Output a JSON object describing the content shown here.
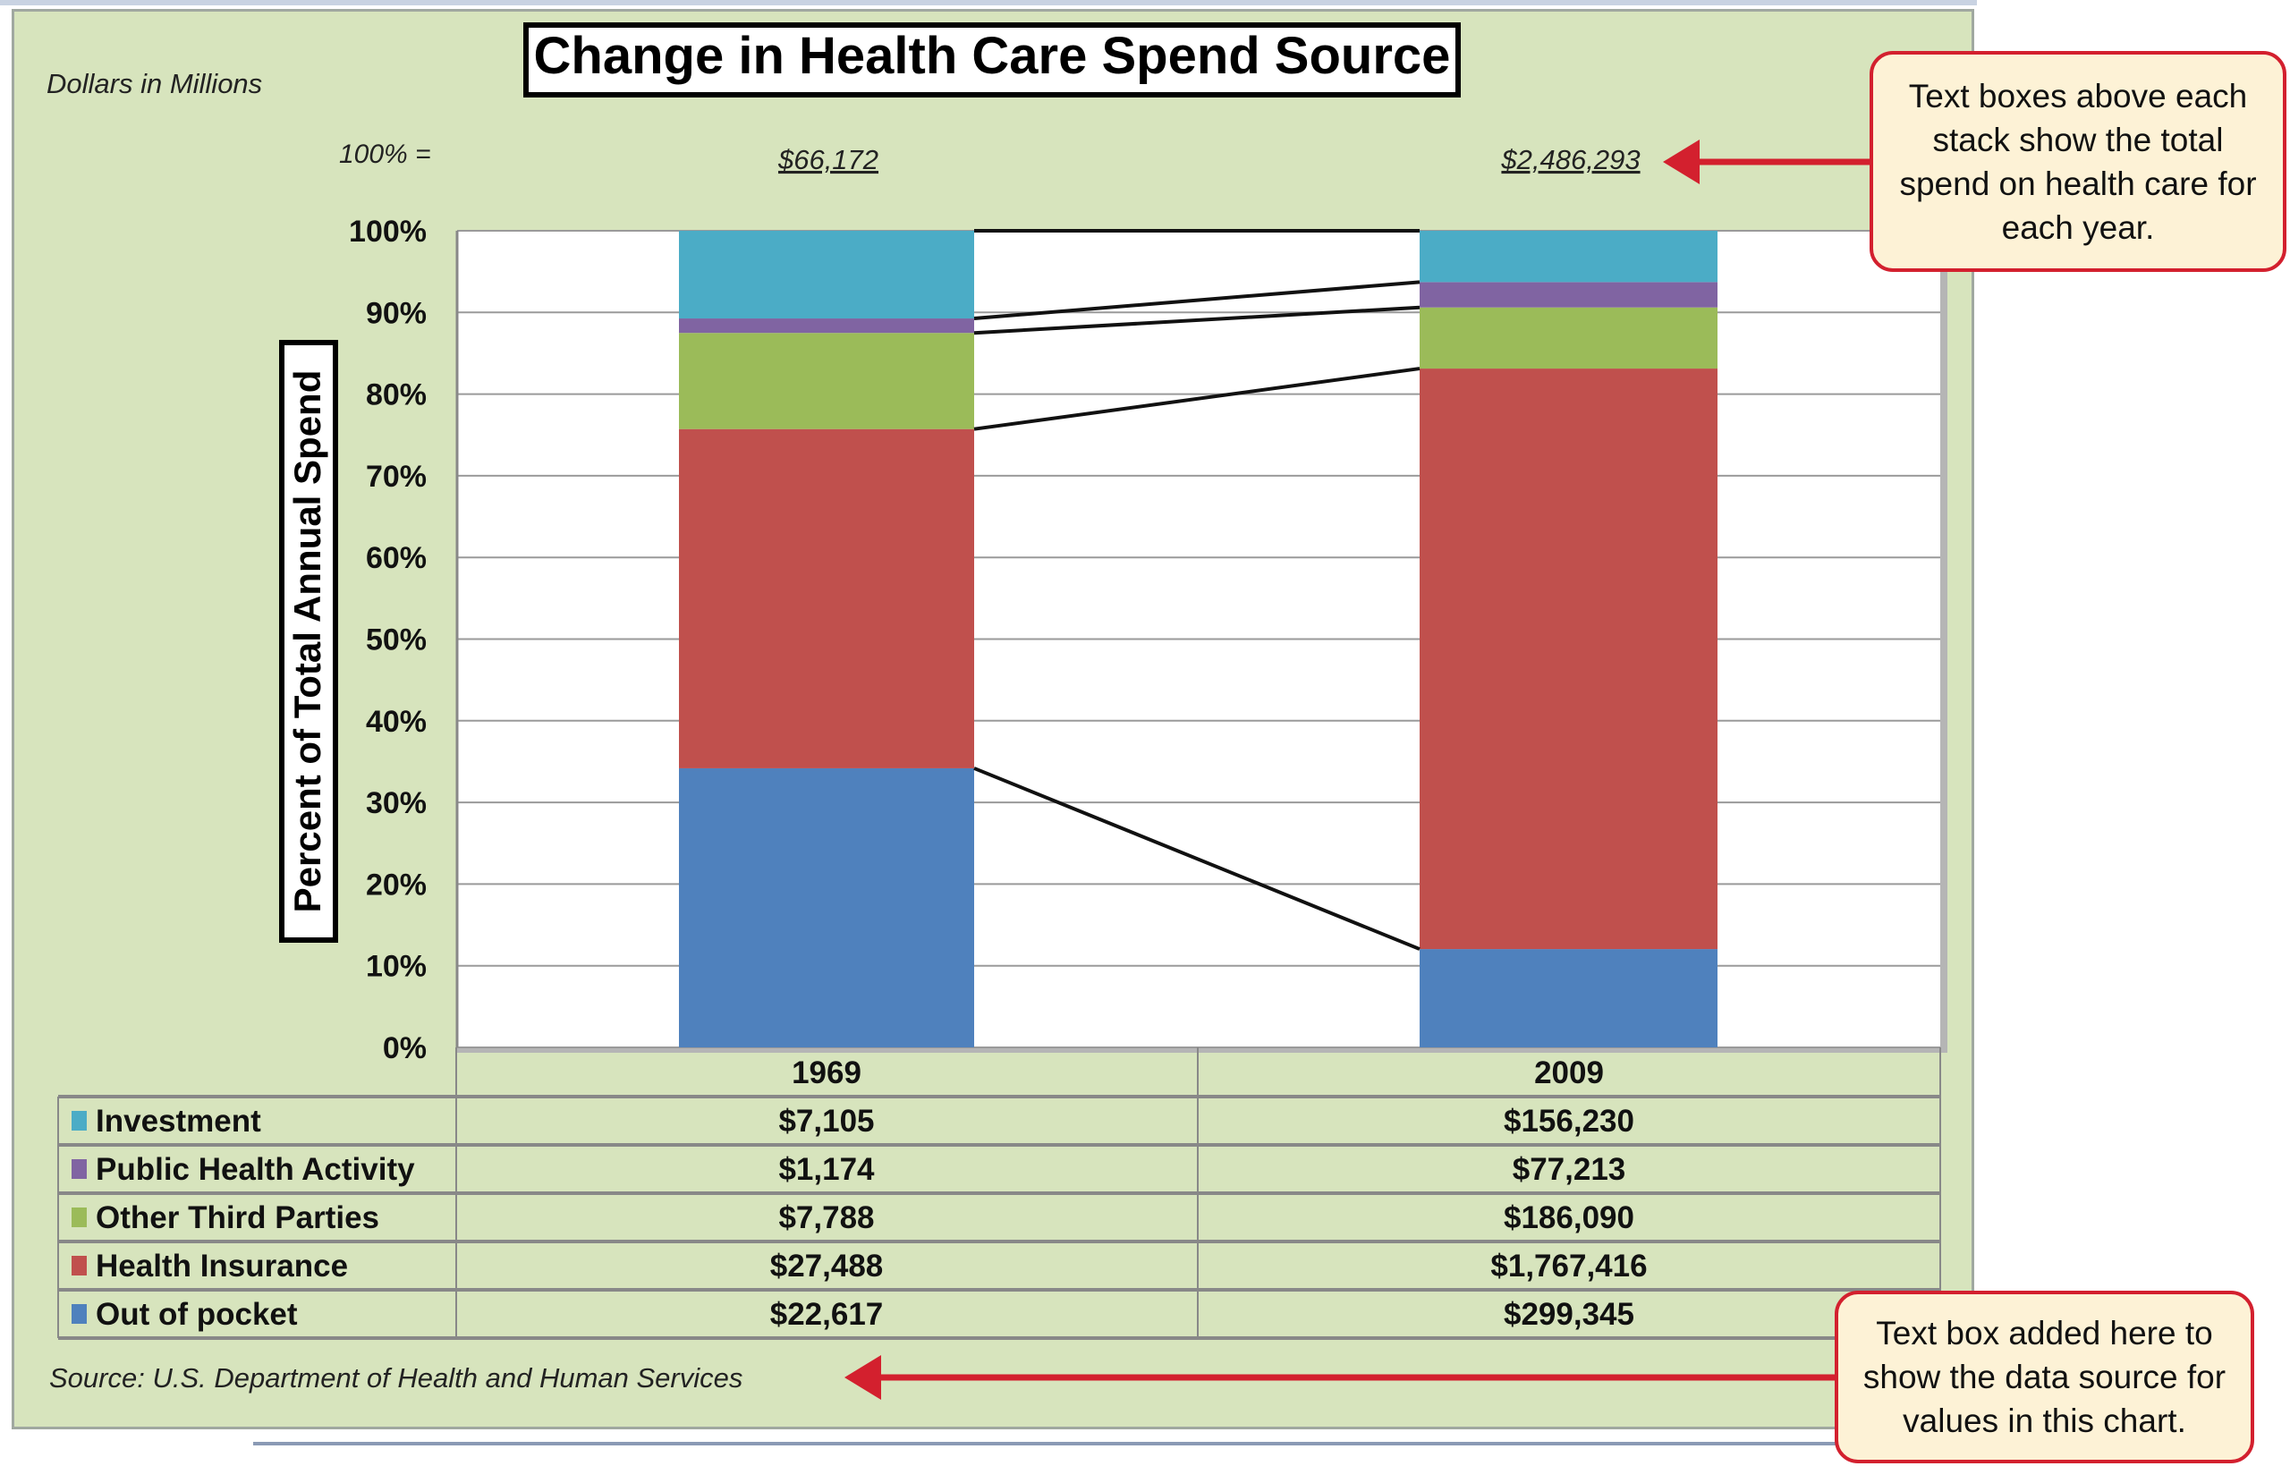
{
  "chart_data": {
    "type": "bar",
    "stacked": "100%",
    "title": "Change in Health Care Spend Source",
    "subtitle": "Dollars in Millions",
    "ylabel": "Percent of Total Annual Spend",
    "ylim": [
      0,
      100
    ],
    "yticks": [
      "0%",
      "10%",
      "20%",
      "30%",
      "40%",
      "50%",
      "60%",
      "70%",
      "80%",
      "90%",
      "100%"
    ],
    "grid": true,
    "categories": [
      "1969",
      "2009"
    ],
    "totals_label": "100% =",
    "totals": [
      "$66,172",
      "$2,486,293"
    ],
    "series": [
      {
        "name": "Out of pocket",
        "color": "#4f81bd",
        "values": [
          22617,
          299345
        ],
        "labels": [
          "$22,617",
          "$299,345"
        ]
      },
      {
        "name": "Health Insurance",
        "color": "#c0504d",
        "values": [
          27488,
          1767416
        ],
        "labels": [
          "$27,488",
          "$1,767,416"
        ]
      },
      {
        "name": "Other Third Parties",
        "color": "#9bbb59",
        "values": [
          7788,
          186090
        ],
        "labels": [
          "$7,788",
          "$186,090"
        ]
      },
      {
        "name": "Public Health Activity",
        "color": "#8064a2",
        "values": [
          1174,
          77213
        ],
        "labels": [
          "$1,174",
          "$77,213"
        ]
      },
      {
        "name": "Investment",
        "color": "#4bacc6",
        "values": [
          7105,
          156230
        ],
        "labels": [
          "$7,105",
          "$156,230"
        ]
      }
    ],
    "source": "Source: U.S. Department of Health and Human Services"
  },
  "annotations": {
    "totals_callout": "Text boxes above each stack show the total spend on health care for each year.",
    "source_callout": "Text box added here to show the data source for values in this chart.",
    "arrow_color": "#d3202e"
  }
}
